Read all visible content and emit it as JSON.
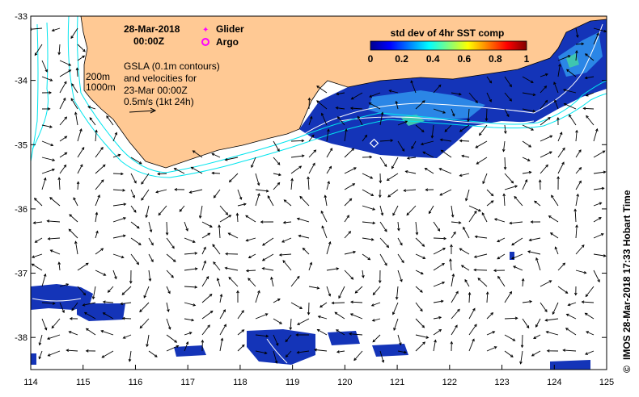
{
  "date_line": "28-Mar-2018",
  "time_line": "00:00Z",
  "legend": {
    "glider": "Glider",
    "argo": "Argo",
    "glider_color": "#ff00ff",
    "argo_color": "#ff00ff"
  },
  "gsla_note": {
    "line1": "GSLA (0.1m contours)",
    "line2": "and velocities for",
    "line3": "23-Mar 00:00Z",
    "line4": "0.5m/s (1kt 24h)"
  },
  "isobath": {
    "shallow": "200m",
    "deep": "1000m",
    "color": "#00e5ee"
  },
  "colorbar": {
    "title": "std dev of 4hr SST comp",
    "ticks": [
      "0",
      "0.2",
      "0.4",
      "0.6",
      "0.8",
      "1"
    ],
    "range": [
      0,
      1
    ]
  },
  "credit": "IMOS 28-Mar-2018 17:33 Hobart Time",
  "copyright_symbol": "©",
  "axes": {
    "lon_ticks": [
      "114",
      "115",
      "116",
      "117",
      "118",
      "119",
      "120",
      "121",
      "122",
      "123",
      "124",
      "125"
    ],
    "lat_ticks": [
      "-33",
      "-34",
      "-35",
      "-36",
      "-37",
      "-38"
    ],
    "lon_range": [
      114,
      125
    ],
    "lat_range": [
      -38.5,
      -33
    ]
  },
  "colors": {
    "land": "#ffc994",
    "sst_low": "#0a2fb0",
    "sst_mid": "#2a7fe0",
    "sst_high": "#37c7a8"
  }
}
